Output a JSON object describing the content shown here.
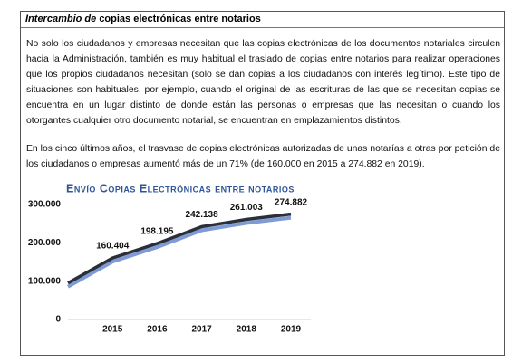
{
  "document": {
    "title_italic": "Intercambio de",
    "title_rest": "copias electrónicas entre notarios",
    "paragraphs": [
      "No solo los ciudadanos y empresas necesitan que las copias electrónicas de los documentos notariales circulen hacia la Administración, también es muy habitual el traslado de copias entre notarios para realizar operaciones que los propios ciudadanos necesitan (solo se dan copias a los ciudadanos con interés legítimo). Este tipo de situaciones son habituales, por ejemplo, cuando el original de las escrituras de las que se necesitan copias se encuentra en un lugar distinto de donde están las personas o empresas que las necesitan o cuando los otorgantes cualquier otro documento notarial, se encuentran en emplazamientos distintos.",
      "En los cinco últimos años, el trasvase de copias electrónicas autorizadas de unas notarías a otras por petición de los ciudadanos o empresas aumentó más de un 71% (de 160.000 en 2015 a 274.882 en 2019)."
    ]
  },
  "chart_data": {
    "type": "line",
    "title": "Envío Copias Electrónicas entre notarios",
    "categories": [
      null,
      "2015",
      "2016",
      "2017",
      "2018",
      "2019"
    ],
    "series": [
      {
        "name": null,
        "color": "#2b2f3a",
        "shadow": "#7f9bd5",
        "values": [
          95000,
          160404,
          198195,
          242138,
          261003,
          274882
        ],
        "value_labels": [
          null,
          "160.404",
          "198.195",
          "242.138",
          "261.003",
          "274.882"
        ]
      }
    ],
    "ylim": [
      0,
      300000
    ],
    "yticks": [
      0,
      {
        "value": 100000,
        "label": "100.000"
      },
      {
        "value": 200000,
        "label": "200.000"
      },
      {
        "value": 300000,
        "label": "300.000"
      }
    ],
    "grid": false
  }
}
